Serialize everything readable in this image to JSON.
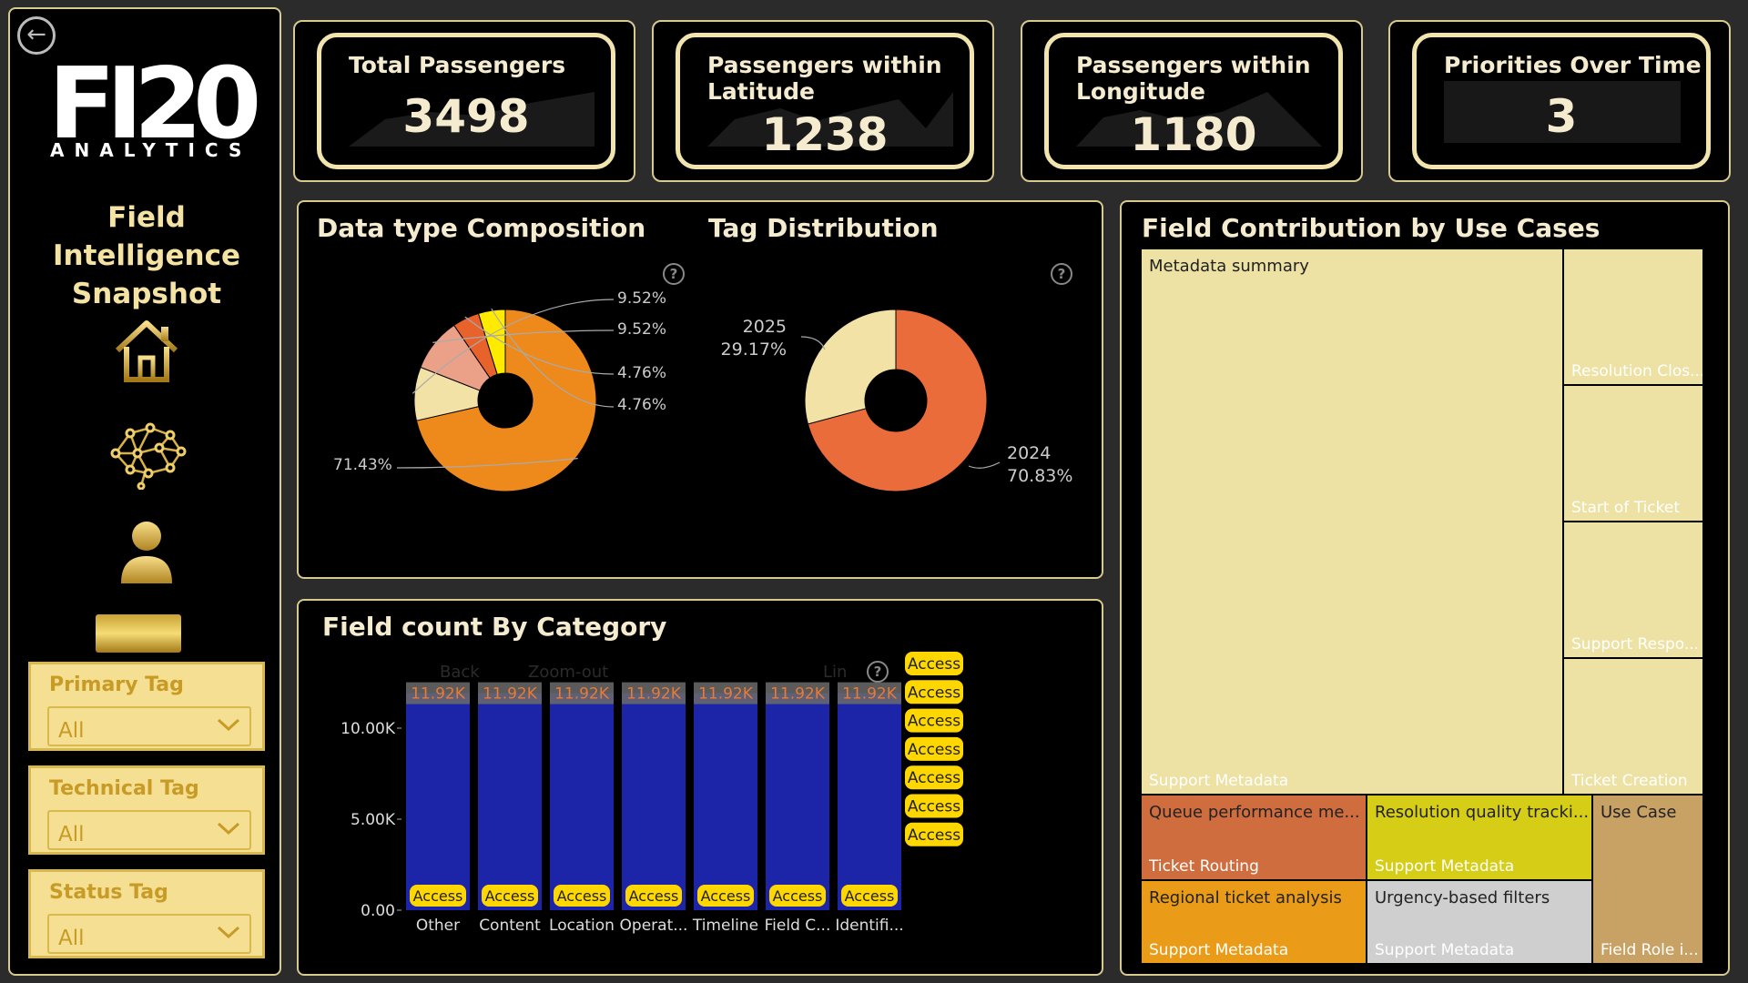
{
  "sidebar": {
    "back_icon": "arrow-left-icon",
    "logo_main": "FI20",
    "logo_sub": "ANALYTICS",
    "title_line1": "Field Intelligence",
    "title_line2": "Snapshot",
    "nav_icons": [
      "home-icon",
      "brain-network-icon",
      "user-icon"
    ],
    "filters": [
      {
        "label": "Primary Tag",
        "value": "All"
      },
      {
        "label": "Technical Tag",
        "value": "All"
      },
      {
        "label": "Status Tag",
        "value": "All"
      }
    ]
  },
  "kpis": [
    {
      "title": "Total Passengers",
      "value": "3498"
    },
    {
      "title": "Passengers within Latitude",
      "value": "1238"
    },
    {
      "title": "Passengers within Longitude",
      "value": "1180"
    },
    {
      "title": "Priorities Over Time",
      "value": "3"
    }
  ],
  "donut_panel": {
    "title_left": "Data type Composition",
    "title_right": "Tag Distribution",
    "help": "?"
  },
  "bar_panel": {
    "title": "Field count By Category",
    "toolbar": [
      "Back",
      "Zoom-out",
      "Lin"
    ],
    "help": "?"
  },
  "treemap_panel": {
    "title": "Field Contribution by Use Cases"
  },
  "colors": {
    "accent_gold": "#d8c98c",
    "bar_blue": "#1c24a8",
    "chip_yellow": "#ffd700"
  },
  "chart_data": [
    {
      "type": "pie",
      "title": "Data type Composition",
      "slices": [
        {
          "label": "71.43%",
          "value": 71.43,
          "color": "#ee8a1c"
        },
        {
          "label": "9.52%",
          "value": 9.52,
          "color": "#f2e2a5"
        },
        {
          "label": "9.52%",
          "value": 9.52,
          "color": "#eba187"
        },
        {
          "label": "4.76%",
          "value": 4.76,
          "color": "#e8622c"
        },
        {
          "label": "4.76%",
          "value": 4.76,
          "color": "#ffeb00"
        }
      ]
    },
    {
      "type": "pie",
      "title": "Tag Distribution",
      "slices": [
        {
          "label": "2024",
          "pct": "70.83%",
          "value": 70.83,
          "color": "#e96c3a"
        },
        {
          "label": "2025",
          "pct": "29.17%",
          "value": 29.17,
          "color": "#f2e2a5"
        }
      ]
    },
    {
      "type": "bar",
      "title": "Field count By Category",
      "categories": [
        "Other",
        "Content",
        "Location",
        "Operat...",
        "Timeline",
        "Field C...",
        "Identifi..."
      ],
      "values": [
        11920,
        11920,
        11920,
        11920,
        11920,
        11920,
        11920
      ],
      "data_labels": [
        "11.92K",
        "11.92K",
        "11.92K",
        "11.92K",
        "11.92K",
        "11.92K",
        "11.92K"
      ],
      "bar_tags": [
        "Access",
        "Access",
        "Access",
        "Access",
        "Access",
        "Access",
        "Access"
      ],
      "legend": [
        "Access",
        "Access",
        "Access",
        "Access",
        "Access",
        "Access",
        "Access"
      ],
      "yticks": [
        "0.00",
        "5.00K",
        "10.00K"
      ],
      "ytick_values": [
        0,
        5000,
        10000
      ],
      "ylim": [
        0,
        13500
      ]
    },
    {
      "type": "treemap",
      "title": "Field Contribution by Use Cases",
      "cells": [
        {
          "top": "Metadata summary",
          "bottom": "Support Metadata"
        },
        {
          "top": "",
          "bottom": "Resolution Clos..."
        },
        {
          "top": "",
          "bottom": "Start of Ticket"
        },
        {
          "top": "",
          "bottom": "Support Respo..."
        },
        {
          "top": "",
          "bottom": "Ticket Creation"
        },
        {
          "top": "Queue performance me...",
          "bottom": "Ticket Routing"
        },
        {
          "top": "Resolution quality tracki...",
          "bottom": "Support Metadata"
        },
        {
          "top": "Use Case",
          "bottom": "Field Role i..."
        },
        {
          "top": "Regional ticket analysis",
          "bottom": "Support Metadata"
        },
        {
          "top": "Urgency-based filters",
          "bottom": "Support Metadata"
        }
      ]
    }
  ]
}
